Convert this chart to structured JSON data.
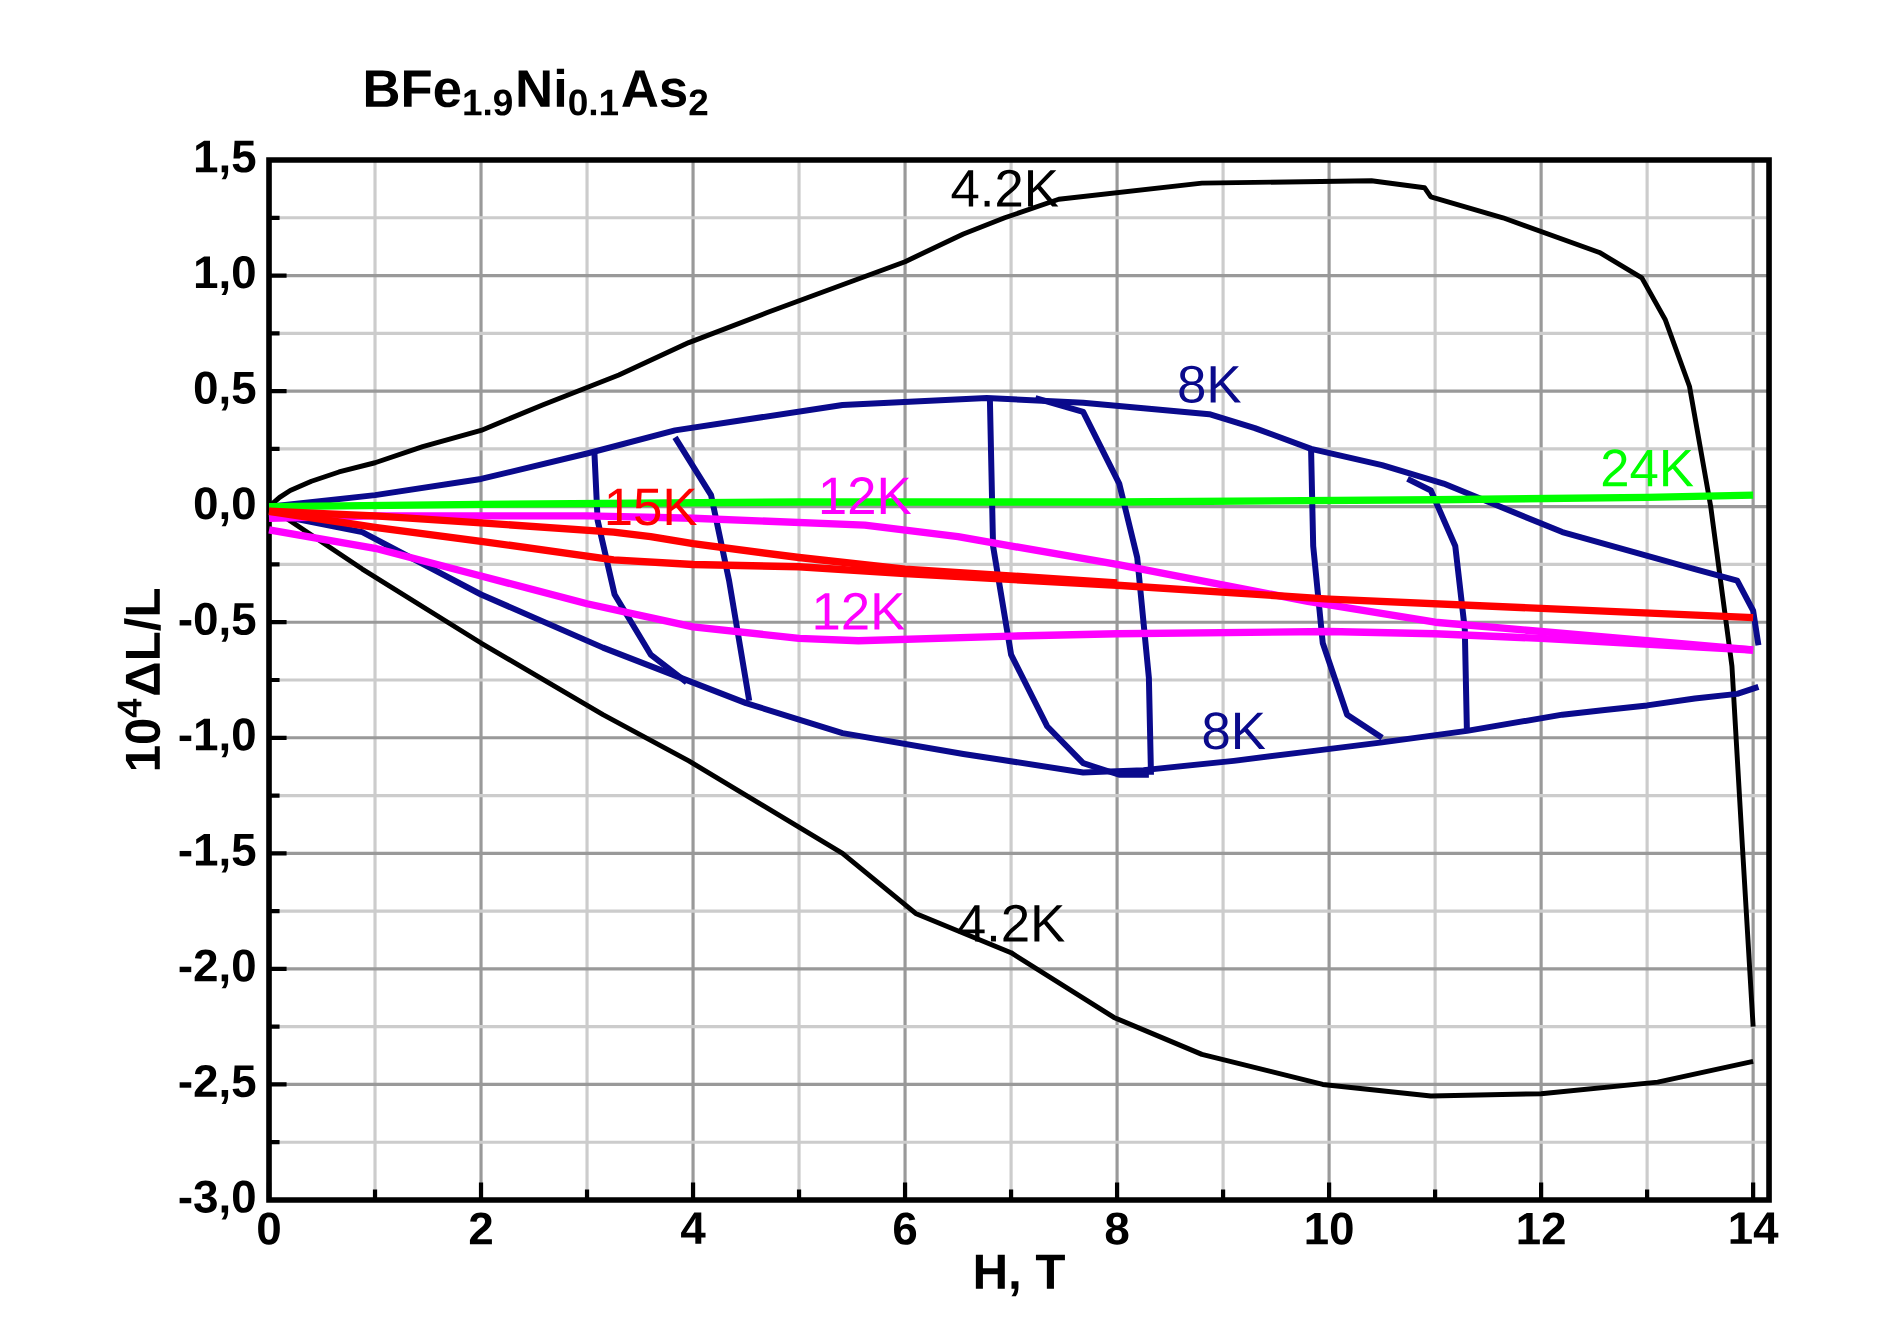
{
  "chart_data": {
    "type": "line",
    "title": "**BFe$_{1.9}$Ni$_{0.1}$As$_{2}$**",
    "xlabel": "H, T",
    "ylabel": "10$^{4}$ΔL/L",
    "xlim": [
      0,
      14.15
    ],
    "ylim": [
      -3.0,
      1.5
    ],
    "xticks": [
      0,
      2,
      4,
      6,
      8,
      10,
      12,
      14
    ],
    "yticks": [
      {
        "value": -3.0,
        "label": "-3,0"
      },
      {
        "value": -2.5,
        "label": "-2,5"
      },
      {
        "value": -2.0,
        "label": "-2,0"
      },
      {
        "value": -1.5,
        "label": "-1,5"
      },
      {
        "value": -1.0,
        "label": "-1,0"
      },
      {
        "value": -0.5,
        "label": "-0,5"
      },
      {
        "value": 0.0,
        "label": "0,0"
      },
      {
        "value": 0.5,
        "label": "0,5"
      },
      {
        "value": 1.0,
        "label": "1,0"
      },
      {
        "value": 1.5,
        "label": "1,5"
      }
    ],
    "grid": true,
    "marker": "none",
    "line_style": "solid",
    "series": [
      {
        "color": "#000000",
        "x": [
          0,
          0.88,
          2.0,
          3.15,
          3.96,
          5.41,
          6.1,
          7.0,
          7.97,
          8.8,
          9.94,
          10.96,
          12.0,
          13.1,
          14.0
        ],
        "values": [
          0,
          -0.27,
          -0.59,
          -0.9,
          -1.1,
          -1.5,
          -1.76,
          -1.93,
          -2.21,
          -2.37,
          -2.5,
          -2.55,
          -2.54,
          -2.49,
          -2.4
        ]
      },
      {
        "color": "#000000",
        "x": [
          0,
          0.1,
          0.2,
          0.4,
          0.66,
          1.0,
          1.45,
          2.0,
          2.58,
          3.3,
          3.96,
          4.7,
          5.41,
          6.0,
          6.55,
          6.94,
          7.45,
          8.8,
          10.4,
          10.9,
          10.96,
          11.64,
          12.55,
          12.95,
          13.17,
          13.4,
          13.6,
          13.8,
          13.9,
          14.0
        ],
        "values": [
          0,
          0.04,
          0.07,
          0.11,
          0.15,
          0.19,
          0.26,
          0.33,
          0.44,
          0.57,
          0.71,
          0.84,
          0.96,
          1.06,
          1.18,
          1.25,
          1.33,
          1.4,
          1.41,
          1.38,
          1.34,
          1.25,
          1.1,
          0.99,
          0.81,
          0.52,
          0.0,
          -0.69,
          -1.48,
          -2.25
        ]
      },
      {
        "color": "#0a0a8c",
        "x": [
          0,
          1,
          2,
          3,
          3.83,
          5.41,
          6.77,
          7.68,
          8.87,
          9.3,
          9.83,
          10.5,
          11.08,
          12.2,
          13.45,
          13.85,
          14.0,
          14.05
        ],
        "values": [
          0,
          0.05,
          0.12,
          0.23,
          0.33,
          0.44,
          0.47,
          0.45,
          0.4,
          0.34,
          0.25,
          0.18,
          0.1,
          -0.11,
          -0.27,
          -0.32,
          -0.45,
          -0.6
        ]
      },
      {
        "color": "#0a0a8c",
        "x": [
          0,
          0.88,
          2.0,
          3.15,
          4.5,
          5.41,
          6.55,
          7.68,
          8.25,
          9.1,
          9.8,
          10.5,
          11.3,
          12.2,
          12.6,
          13.0,
          13.45,
          13.85,
          14.05
        ],
        "values": [
          -0.03,
          -0.11,
          -0.38,
          -0.61,
          -0.85,
          -0.98,
          -1.07,
          -1.15,
          -1.14,
          -1.1,
          -1.06,
          -1.02,
          -0.97,
          -0.9,
          -0.88,
          -0.86,
          -0.83,
          -0.81,
          -0.78
        ]
      },
      {
        "color": "#0a0a8c",
        "x": [
          3.07,
          3.1,
          3.26,
          3.6,
          3.94
        ],
        "values": [
          0.23,
          -0.06,
          -0.38,
          -0.64,
          -0.76
        ]
      },
      {
        "color": "#0a0a8c",
        "x": [
          3.83,
          4.17,
          4.34,
          4.53
        ],
        "values": [
          0.3,
          0.05,
          -0.32,
          -0.84
        ]
      },
      {
        "color": "#0a0a8c",
        "x": [
          6.8,
          6.83,
          7.0,
          7.34,
          7.68,
          8.02,
          8.3
        ],
        "values": [
          0.47,
          -0.17,
          -0.64,
          -0.95,
          -1.11,
          -1.16,
          -1.16
        ]
      },
      {
        "color": "#0a0a8c",
        "x": [
          7.23,
          7.68,
          8.02,
          8.19,
          8.3,
          8.32
        ],
        "values": [
          0.47,
          0.41,
          0.1,
          -0.22,
          -0.74,
          -1.16
        ]
      },
      {
        "color": "#0a0a8c",
        "x": [
          9.83,
          9.85,
          9.94,
          10.17,
          10.5
        ],
        "values": [
          0.25,
          -0.17,
          -0.59,
          -0.9,
          -1.0
        ]
      },
      {
        "color": "#0a0a8c",
        "x": [
          10.74,
          10.96,
          11.19,
          11.28,
          11.3
        ],
        "values": [
          0.12,
          0.07,
          -0.17,
          -0.53,
          -0.97
        ]
      },
      {
        "color": "#ff00ff",
        "x": [
          0,
          1,
          2,
          3,
          4,
          5,
          5.56,
          7,
          8,
          10,
          11,
          12,
          14
        ],
        "values": [
          -0.1,
          -0.18,
          -0.3,
          -0.42,
          -0.52,
          -0.57,
          -0.58,
          -0.56,
          -0.55,
          -0.54,
          -0.55,
          -0.57,
          -0.62
        ]
      },
      {
        "color": "#ff00ff",
        "x": [
          0,
          1,
          2,
          3,
          4,
          5.62,
          6.5,
          8,
          9.8,
          11,
          14
        ],
        "values": [
          -0.05,
          -0.04,
          -0.04,
          -0.04,
          -0.05,
          -0.08,
          -0.13,
          -0.25,
          -0.41,
          -0.5,
          -0.62
        ]
      },
      {
        "color": "#00ff00",
        "x": [
          0,
          2,
          5,
          8,
          11,
          13.0,
          14
        ],
        "values": [
          0,
          0.01,
          0.02,
          0.02,
          0.03,
          0.04,
          0.05
        ]
      },
      {
        "color": "#ff0000",
        "x": [
          0,
          1,
          2,
          3.25,
          4,
          5,
          6,
          8,
          10,
          12,
          14
        ],
        "values": [
          -0.02,
          -0.09,
          -0.15,
          -0.23,
          -0.25,
          -0.26,
          -0.29,
          -0.34,
          -0.4,
          -0.44,
          -0.48
        ]
      },
      {
        "color": "#ff0000",
        "x": [
          0,
          1,
          2,
          3.25,
          3.6,
          4,
          5,
          6,
          8
        ],
        "values": [
          -0.02,
          -0.04,
          -0.07,
          -0.11,
          -0.13,
          -0.16,
          -0.22,
          -0.27,
          -0.33
        ]
      }
    ],
    "annotations": [
      {
        "text": "4.2K",
        "x": 6.94,
        "y": 1.25
      },
      {
        "text": "4.2K",
        "x": 7.0,
        "y": -1.93
      },
      {
        "text": "8K",
        "x": 8.87,
        "y": 0.4
      },
      {
        "text": "8K",
        "x": 9.1,
        "y": -1.1
      },
      {
        "text": "12K",
        "x": 5.62,
        "y": -0.08
      },
      {
        "text": "12K",
        "x": 5.56,
        "y": -0.58
      },
      {
        "text": "15K",
        "x": 3.6,
        "y": -0.13
      },
      {
        "text": "24K",
        "x": 13.0,
        "y": 0.04
      }
    ]
  }
}
